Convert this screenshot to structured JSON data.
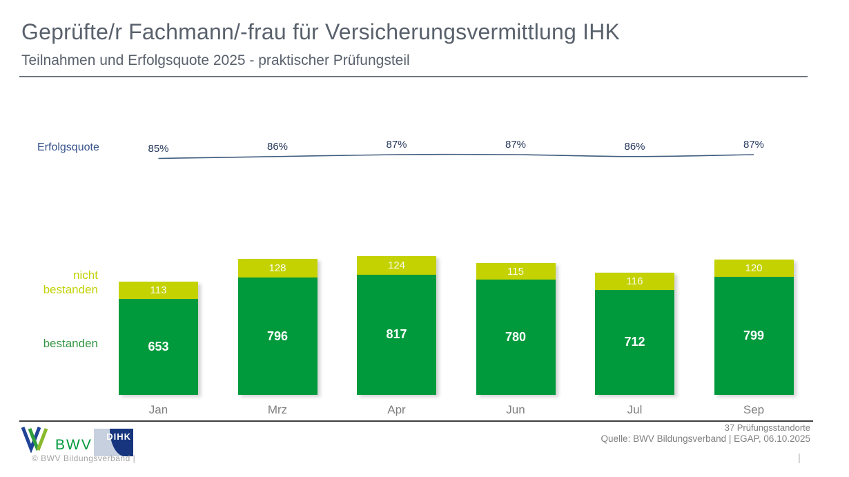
{
  "header": {
    "title": "Geprüfte/r Fachmann/-frau für Versicherungsvermittlung IHK",
    "subtitle": "Teilnahmen und Erfolgsquote 2025 - praktischer Prüfungsteil"
  },
  "chart_data": [
    {
      "type": "line",
      "name": "Erfolgsquote",
      "categories": [
        "Jan",
        "Mrz",
        "Apr",
        "Jun",
        "Jul",
        "Sep"
      ],
      "values": [
        85,
        86,
        87,
        87,
        86,
        87
      ],
      "labels": [
        "85%",
        "86%",
        "87%",
        "87%",
        "86%",
        "87%"
      ],
      "color": "#3f5c7d",
      "label_color": "#24365c",
      "ylim": [
        84,
        88
      ],
      "grid": false,
      "smooth": true
    },
    {
      "type": "bar",
      "stacked": true,
      "categories": [
        "Jan",
        "Mrz",
        "Apr",
        "Jun",
        "Jul",
        "Sep"
      ],
      "series": [
        {
          "name": "bestanden",
          "values": [
            653,
            796,
            817,
            780,
            712,
            799
          ],
          "color": "#009a3d",
          "label_color": "#ffffff"
        },
        {
          "name": "nicht bestanden",
          "values": [
            113,
            128,
            124,
            115,
            116,
            120
          ],
          "color": "#c3d200",
          "label_color": "#fbfbec"
        }
      ],
      "legend_position": "left",
      "grid": false
    }
  ],
  "footer": {
    "standorte": "37 Prüfungsstandorte",
    "quelle": "Quelle: BWV Bildungsverband | EGAP, 06.10.2025",
    "copyright": "©  BWV Bildungsverband  |",
    "page_divider": "|",
    "bwv_text": "BWV",
    "dihk_text": "DIHK"
  },
  "colors": {
    "title_gray": "#59616c",
    "axis_gray": "#7f7f7f",
    "brand_blue": "#1f4396",
    "brand_green": "#36a22f",
    "brand_light_green": "#8ab92c"
  }
}
